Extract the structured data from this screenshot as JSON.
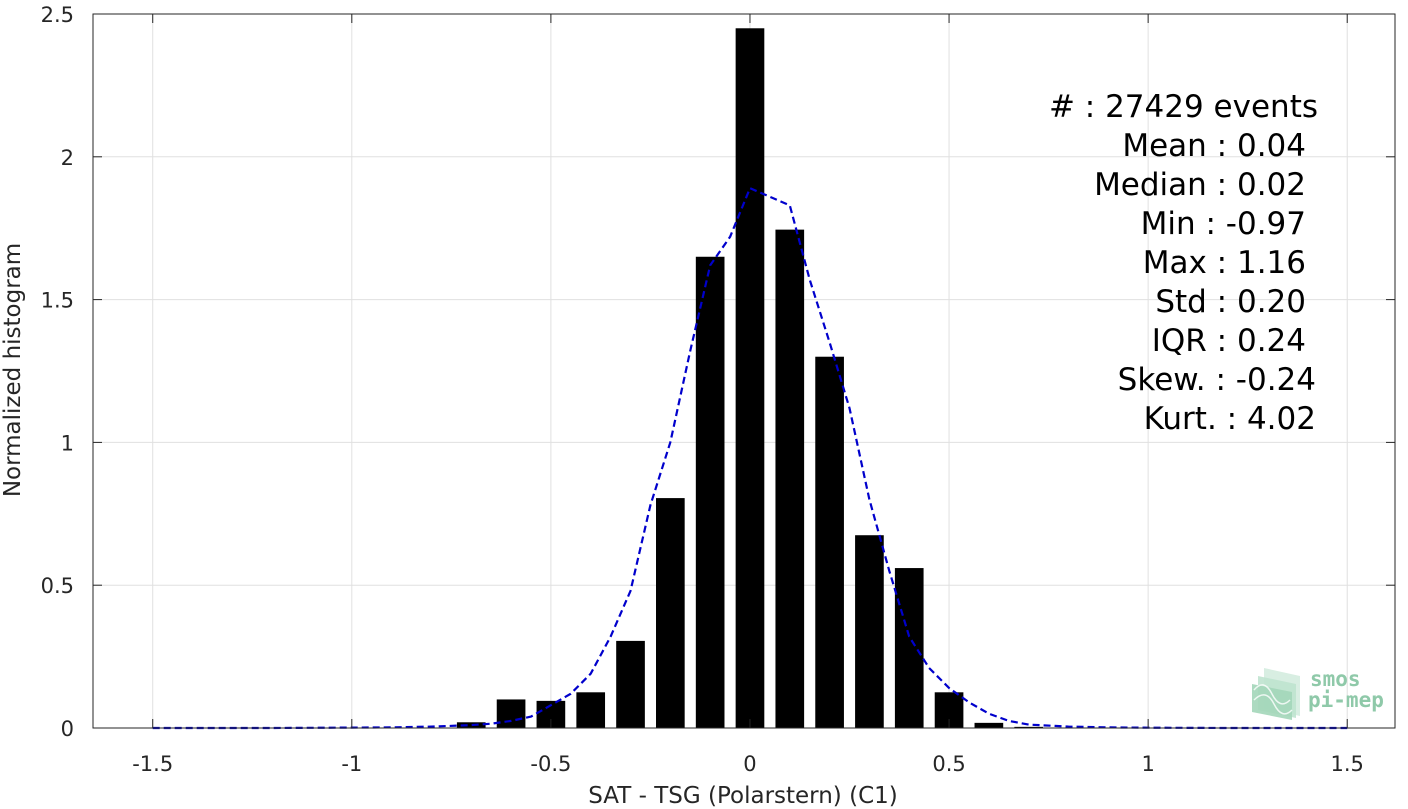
{
  "chart_data": {
    "type": "bar",
    "xlabel": "SAT - TSG (Polarstern) (C1)",
    "ylabel": "Normalized histogram",
    "xlim": [
      -1.65,
      1.62
    ],
    "ylim": [
      0,
      2.5
    ],
    "grid": true,
    "x_ticks": [
      -1.5,
      -1,
      -0.5,
      0,
      0.5,
      1,
      1.5
    ],
    "x_tick_labels": [
      "-1.5",
      "-1",
      "-0.5",
      "0",
      "0.5",
      "1",
      "1.5"
    ],
    "y_ticks": [
      0,
      0.5,
      1,
      1.5,
      2,
      2.5
    ],
    "y_tick_labels": [
      "0",
      "0.5",
      "1",
      "1.5",
      "2",
      "2.5"
    ],
    "bar_width": 0.072,
    "bar_color": "#000000",
    "bars": [
      {
        "x": -0.7,
        "y": 0.02
      },
      {
        "x": -0.6,
        "y": 0.1
      },
      {
        "x": -0.5,
        "y": 0.095
      },
      {
        "x": -0.4,
        "y": 0.125
      },
      {
        "x": -0.3,
        "y": 0.305
      },
      {
        "x": -0.2,
        "y": 0.805
      },
      {
        "x": -0.1,
        "y": 1.65
      },
      {
        "x": 0.0,
        "y": 2.45
      },
      {
        "x": 0.1,
        "y": 1.745
      },
      {
        "x": 0.2,
        "y": 1.3
      },
      {
        "x": 0.3,
        "y": 0.675
      },
      {
        "x": 0.4,
        "y": 0.56
      },
      {
        "x": 0.5,
        "y": 0.125
      },
      {
        "x": 0.6,
        "y": 0.018
      },
      {
        "x": 0.7,
        "y": 0.004
      }
    ],
    "fit_line": {
      "style": "dashed",
      "color": "#0000cc",
      "x": [
        -1.5,
        -1.2,
        -0.9,
        -0.8,
        -0.7,
        -0.65,
        -0.6,
        -0.55,
        -0.5,
        -0.45,
        -0.4,
        -0.35,
        -0.3,
        -0.25,
        -0.2,
        -0.15,
        -0.1,
        -0.05,
        0.0,
        0.05,
        0.1,
        0.15,
        0.2,
        0.25,
        0.3,
        0.35,
        0.4,
        0.45,
        0.5,
        0.55,
        0.6,
        0.65,
        0.7,
        0.8,
        0.9,
        1.0,
        1.2,
        1.5
      ],
      "y": [
        0.0,
        0.0,
        0.002,
        0.005,
        0.01,
        0.015,
        0.025,
        0.04,
        0.08,
        0.12,
        0.19,
        0.32,
        0.48,
        0.78,
        1.0,
        1.32,
        1.62,
        1.72,
        1.89,
        1.86,
        1.83,
        1.57,
        1.35,
        1.12,
        0.8,
        0.55,
        0.32,
        0.21,
        0.14,
        0.09,
        0.05,
        0.025,
        0.012,
        0.005,
        0.002,
        0.001,
        0.0,
        0.0
      ]
    },
    "stats": [
      {
        "label": "#  : 27429 events"
      },
      {
        "label": "Mean : 0.04"
      },
      {
        "label": "Median : 0.02"
      },
      {
        "label": "Min : -0.97"
      },
      {
        "label": "Max : 1.16"
      },
      {
        "label": "Std : 0.20"
      },
      {
        "label": "IQR : 0.24"
      },
      {
        "label": "Skew. : -0.24"
      },
      {
        "label": "Kurt. : 4.02"
      }
    ]
  },
  "logo": {
    "line1": "smos",
    "line2": "pi-mep"
  }
}
